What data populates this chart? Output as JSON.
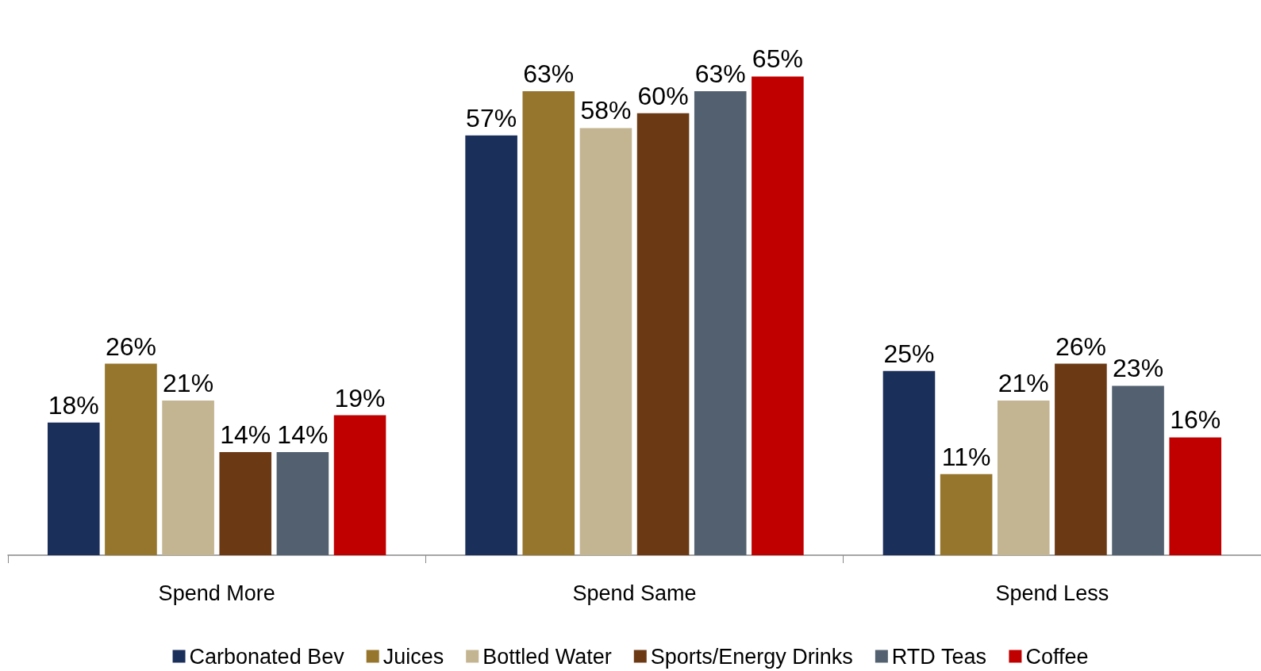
{
  "chart_data": {
    "type": "bar",
    "categories": [
      "Spend More",
      "Spend Same",
      "Spend Less"
    ],
    "series": [
      {
        "name": "Carbonated Bev",
        "color": "#1b2f5b",
        "values": [
          18,
          57,
          25
        ],
        "value_labels": [
          "18%",
          "57%",
          "25%"
        ]
      },
      {
        "name": "Juices",
        "color": "#96752c",
        "values": [
          26,
          63,
          11
        ],
        "value_labels": [
          "26%",
          "63%",
          "11%"
        ]
      },
      {
        "name": "Bottled Water",
        "color": "#c4b592",
        "values": [
          21,
          58,
          21
        ],
        "value_labels": [
          "21%",
          "58%",
          "21%"
        ]
      },
      {
        "name": "Sports/Energy Drinks",
        "color": "#6b3914",
        "values": [
          14,
          60,
          26
        ],
        "value_labels": [
          "14%",
          "60%",
          "26%"
        ]
      },
      {
        "name": "RTD Teas",
        "color": "#52606f",
        "values": [
          14,
          63,
          23
        ],
        "value_labels": [
          "14%",
          "63%",
          "23%"
        ]
      },
      {
        "name": "Coffee",
        "color": "#c00000",
        "values": [
          19,
          65,
          16
        ],
        "value_labels": [
          "19%",
          "65%",
          "16%"
        ]
      }
    ],
    "legend": "bottom",
    "grid": false
  }
}
